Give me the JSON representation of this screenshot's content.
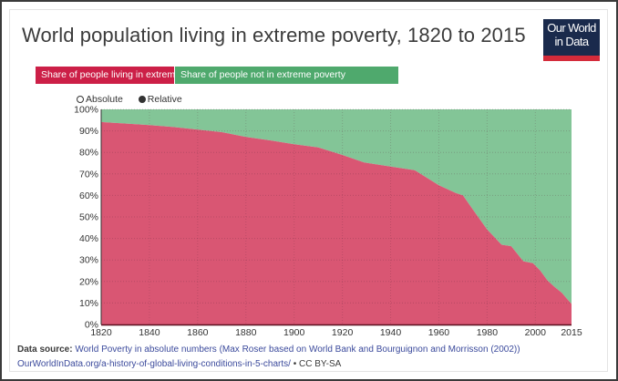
{
  "header": {
    "title": "World population living in extreme poverty, 1820 to 2015",
    "logo_line1": "Our World",
    "logo_line2": "in Data"
  },
  "legend": {
    "poverty_label": "Share of people living in extreme poverty",
    "not_poverty_label": "Share of people not in extreme poverty"
  },
  "controls": {
    "absolute_label": "Absolute",
    "relative_label": "Relative",
    "selected": "Relative"
  },
  "colors": {
    "poverty_legend": "#cc1f47",
    "not_poverty_legend": "#4fa96d",
    "poverty_area": "#d95673",
    "not_poverty_area": "#83c597",
    "logo_bg": "#1a2a4c",
    "logo_bar": "#d42b3a"
  },
  "footer": {
    "source_label": "Data source:",
    "source_text": "World Poverty in absolute numbers (Max Roser based on World Bank and Bourguignon and Morrisson (2002))",
    "url": "OurWorldInData.org/a-history-of-global-living-conditions-in-5-charts/",
    "separator": "•",
    "license": "CC BY-SA"
  },
  "chart_data": {
    "type": "area",
    "stacked": true,
    "normalized": true,
    "title": "World population living in extreme poverty, 1820 to 2015",
    "xlabel": "",
    "ylabel": "",
    "xlim": [
      1820,
      2015
    ],
    "ylim": [
      0,
      100
    ],
    "x_ticks": [
      "1820",
      "1840",
      "1860",
      "1880",
      "1900",
      "1920",
      "1940",
      "1960",
      "1980",
      "2000",
      "2015"
    ],
    "y_ticks": [
      "0%",
      "10%",
      "20%",
      "30%",
      "40%",
      "50%",
      "60%",
      "70%",
      "80%",
      "90%",
      "100%"
    ],
    "grid": true,
    "legend_position": "top-left",
    "x": [
      1820,
      1840,
      1850,
      1870,
      1880,
      1890,
      1900,
      1910,
      1920,
      1929,
      1940,
      1950,
      1960,
      1967,
      1970,
      1975,
      1980,
      1986,
      1990,
      1995,
      1999,
      2002,
      2005,
      2008,
      2011,
      2013,
      2015
    ],
    "series": [
      {
        "name": "Share of people living in extreme poverty",
        "values": [
          94.1,
          92.7,
          91.8,
          89.4,
          87.2,
          85.6,
          83.8,
          82.3,
          78.8,
          75.3,
          73.4,
          71.7,
          64.7,
          61.1,
          60.0,
          52.0,
          44.2,
          37.1,
          36.4,
          29.4,
          28.5,
          25.1,
          20.5,
          17.4,
          14.7,
          12.1,
          9.6
        ]
      },
      {
        "name": "Share of people not in extreme poverty",
        "values": [
          5.9,
          7.3,
          8.2,
          10.6,
          12.8,
          14.4,
          16.2,
          17.7,
          21.2,
          24.7,
          26.6,
          28.3,
          35.3,
          38.9,
          40.0,
          48.0,
          55.8,
          62.9,
          63.6,
          70.6,
          71.5,
          74.9,
          79.5,
          82.6,
          85.3,
          87.9,
          90.4
        ]
      }
    ]
  }
}
